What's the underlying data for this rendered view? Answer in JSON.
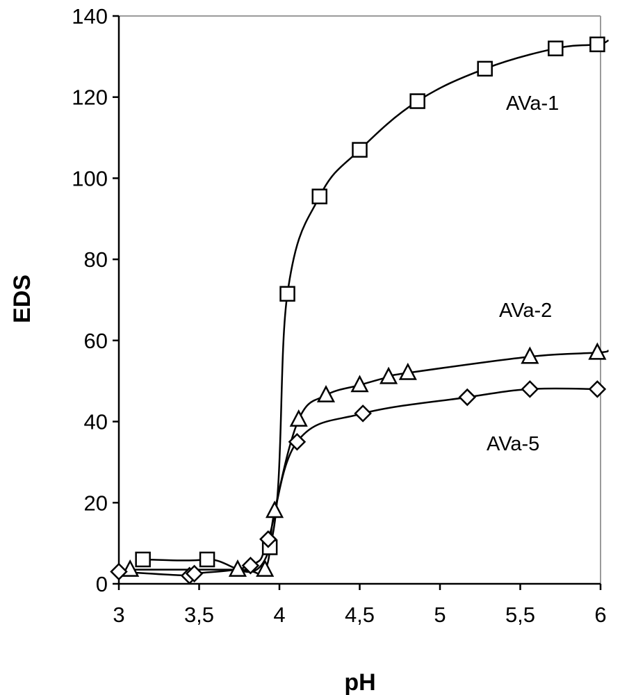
{
  "chart_data": {
    "type": "line",
    "title": "",
    "xlabel": "pH",
    "ylabel": "EDS",
    "xlim": [
      3,
      6
    ],
    "ylim": [
      0,
      140
    ],
    "x_ticks": [
      3,
      3.5,
      4,
      4.5,
      5,
      5.5,
      6
    ],
    "x_tick_labels": [
      "3",
      "3,5",
      "4",
      "4,5",
      "5",
      "5,5",
      "6"
    ],
    "y_ticks": [
      0,
      20,
      40,
      60,
      80,
      100,
      120,
      140
    ],
    "y_tick_labels": [
      "0",
      "20",
      "40",
      "60",
      "80",
      "100",
      "120",
      "140"
    ],
    "grid": false,
    "legend": "none",
    "series": [
      {
        "name": "AVa-1",
        "marker": "square",
        "points": [
          [
            3.15,
            6
          ],
          [
            3.55,
            6
          ],
          [
            3.94,
            9
          ],
          [
            4.05,
            71.5
          ],
          [
            4.25,
            95.5
          ],
          [
            4.5,
            107
          ],
          [
            4.86,
            119
          ],
          [
            5.28,
            127
          ],
          [
            5.72,
            132
          ],
          [
            5.98,
            133
          ]
        ],
        "curve_end": [
          6.05,
          134
        ]
      },
      {
        "name": "AVa-2",
        "marker": "triangle",
        "points": [
          [
            3.07,
            3.5
          ],
          [
            3.74,
            3.5
          ],
          [
            3.91,
            3.5
          ],
          [
            3.97,
            18
          ],
          [
            4.12,
            40.5
          ],
          [
            4.29,
            46.5
          ],
          [
            4.5,
            49
          ],
          [
            4.68,
            51
          ],
          [
            4.8,
            52
          ],
          [
            5.56,
            56
          ],
          [
            5.98,
            57
          ]
        ],
        "curve_end": [
          6.05,
          57.5
        ]
      },
      {
        "name": "AVa-5",
        "marker": "diamond",
        "points": [
          [
            3.0,
            3
          ],
          [
            3.44,
            2
          ],
          [
            3.47,
            2.5
          ],
          [
            3.82,
            4.5
          ],
          [
            3.93,
            11
          ],
          [
            4.11,
            35
          ],
          [
            4.52,
            42
          ],
          [
            5.17,
            46
          ],
          [
            5.56,
            48
          ],
          [
            5.98,
            48
          ]
        ]
      }
    ]
  }
}
